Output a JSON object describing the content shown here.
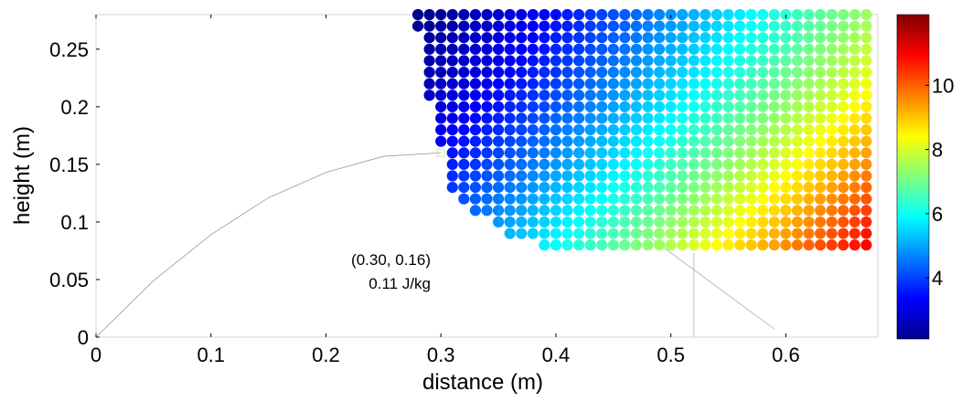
{
  "chart_data": {
    "type": "scatter",
    "title": "",
    "xlabel": "distance (m)",
    "ylabel": "height (m)",
    "xlim": [
      0,
      0.68
    ],
    "ylim": [
      0,
      0.28
    ],
    "x_ticks": [
      "0",
      "0.1",
      "0.2",
      "0.3",
      "0.4",
      "0.5",
      "0.6"
    ],
    "y_ticks": [
      "0",
      "0.05",
      "0.1",
      "0.15",
      "0.2",
      "0.25"
    ],
    "grid": false,
    "legend": "none",
    "colormap": "jet",
    "colorbar": {
      "range": [
        2.1,
        12.2
      ],
      "ticks": [
        "4",
        "6",
        "8",
        "10"
      ],
      "position": "right"
    },
    "points": {
      "x_step": 0.01,
      "y_step": 0.01,
      "x_max": 0.67,
      "y_min": 0.08,
      "y_max": 0.28,
      "rows": [
        {
          "y": 0.28,
          "x_start": 0.28
        },
        {
          "y": 0.27,
          "x_start": 0.28
        },
        {
          "y": 0.26,
          "x_start": 0.29
        },
        {
          "y": 0.25,
          "x_start": 0.29
        },
        {
          "y": 0.24,
          "x_start": 0.29
        },
        {
          "y": 0.23,
          "x_start": 0.29
        },
        {
          "y": 0.22,
          "x_start": 0.29
        },
        {
          "y": 0.21,
          "x_start": 0.29
        },
        {
          "y": 0.2,
          "x_start": 0.3
        },
        {
          "y": 0.19,
          "x_start": 0.3
        },
        {
          "y": 0.18,
          "x_start": 0.3
        },
        {
          "y": 0.17,
          "x_start": 0.3
        },
        {
          "y": 0.16,
          "x_start": 0.31
        },
        {
          "y": 0.15,
          "x_start": 0.31
        },
        {
          "y": 0.14,
          "x_start": 0.31
        },
        {
          "y": 0.13,
          "x_start": 0.31
        },
        {
          "y": 0.12,
          "x_start": 0.32
        },
        {
          "y": 0.11,
          "x_start": 0.33
        },
        {
          "y": 0.1,
          "x_start": 0.35
        },
        {
          "y": 0.09,
          "x_start": 0.36
        },
        {
          "y": 0.08,
          "x_start": 0.39
        }
      ],
      "value_model": "value increases with distance and decreases with height (approx. 2.2 at top-left to 12.1 at bottom-right)"
    },
    "trajectory": {
      "points": [
        [
          0.0,
          0.0
        ],
        [
          0.05,
          0.049
        ],
        [
          0.1,
          0.089
        ],
        [
          0.15,
          0.121
        ],
        [
          0.2,
          0.143
        ],
        [
          0.25,
          0.157
        ],
        [
          0.3,
          0.16
        ]
      ]
    },
    "reference_lines": [
      {
        "from": [
          0.45,
          0.11
        ],
        "to": [
          0.59,
          0.007
        ]
      },
      {
        "from": [
          0.52,
          0.073
        ],
        "to": [
          0.52,
          0.0
        ]
      }
    ],
    "annotation": {
      "line1": "(0.30, 0.16)",
      "line2": "0.11 J/kg",
      "anchor": [
        0.3,
        0.16
      ]
    }
  }
}
